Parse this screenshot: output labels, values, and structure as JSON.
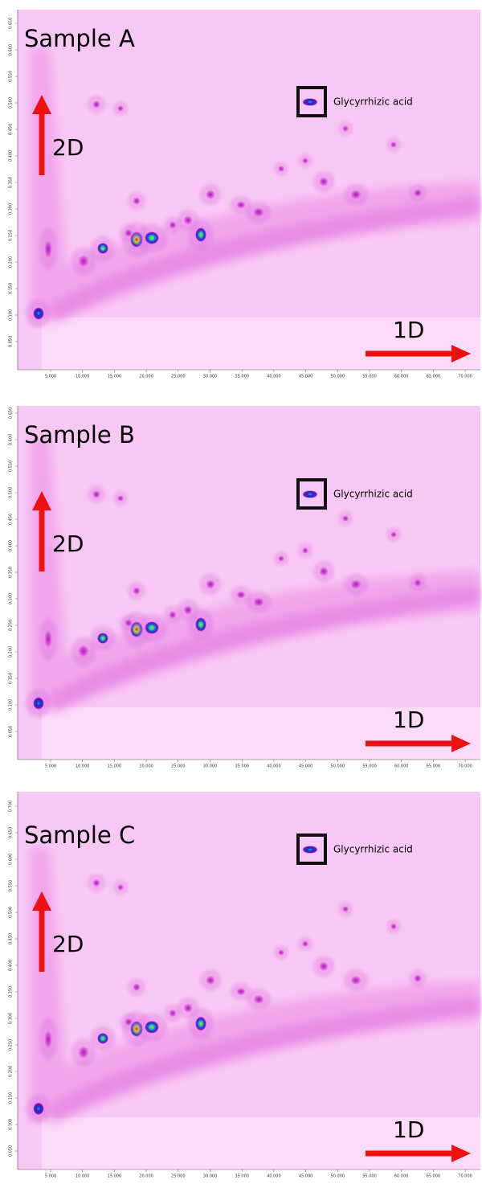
{
  "panels": [
    {
      "title": "Sample A",
      "y_axis": "2D",
      "x_axis": "1D",
      "annotation": "Glycyrrhizic acid",
      "yticks": [
        "0.050",
        "0.100",
        "0.150",
        "0.200",
        "0.250",
        "0.300",
        "0.350",
        "0.400",
        "0.450",
        "0.500",
        "0.550",
        "0.600",
        "0.650"
      ],
      "xticks": [
        "5.000",
        "10.000",
        "15.000",
        "20.000",
        "25.000",
        "30.000",
        "35.000",
        "40.000",
        "45.000",
        "50.000",
        "55.000",
        "60.000",
        "65.000",
        "70.000"
      ]
    },
    {
      "title": "Sample B",
      "y_axis": "2D",
      "x_axis": "1D",
      "annotation": "Glycyrrhizic acid",
      "yticks": [
        "0.050",
        "0.100",
        "0.150",
        "0.200",
        "0.250",
        "0.300",
        "0.350",
        "0.400",
        "0.450",
        "0.500",
        "0.550",
        "0.600",
        "0.650"
      ],
      "xticks": [
        "5.000",
        "10.000",
        "15.000",
        "20.000",
        "25.000",
        "30.000",
        "35.000",
        "40.000",
        "45.000",
        "50.000",
        "55.000",
        "60.000",
        "65.000",
        "70.000"
      ]
    },
    {
      "title": "Sample C",
      "y_axis": "2D",
      "x_axis": "1D",
      "annotation": "Glycyrrhizic acid",
      "yticks": [
        "0.050",
        "0.100",
        "0.150",
        "0.200",
        "0.250",
        "0.300",
        "0.350",
        "0.400",
        "0.450",
        "0.500",
        "0.550",
        "0.600",
        "0.650",
        "0.700"
      ],
      "xticks": [
        "5.000",
        "10.000",
        "15.000",
        "20.000",
        "25.000",
        "30.000",
        "35.000",
        "40.000",
        "45.000",
        "50.000",
        "55.000",
        "60.000",
        "65.000",
        "70.000"
      ]
    }
  ]
}
